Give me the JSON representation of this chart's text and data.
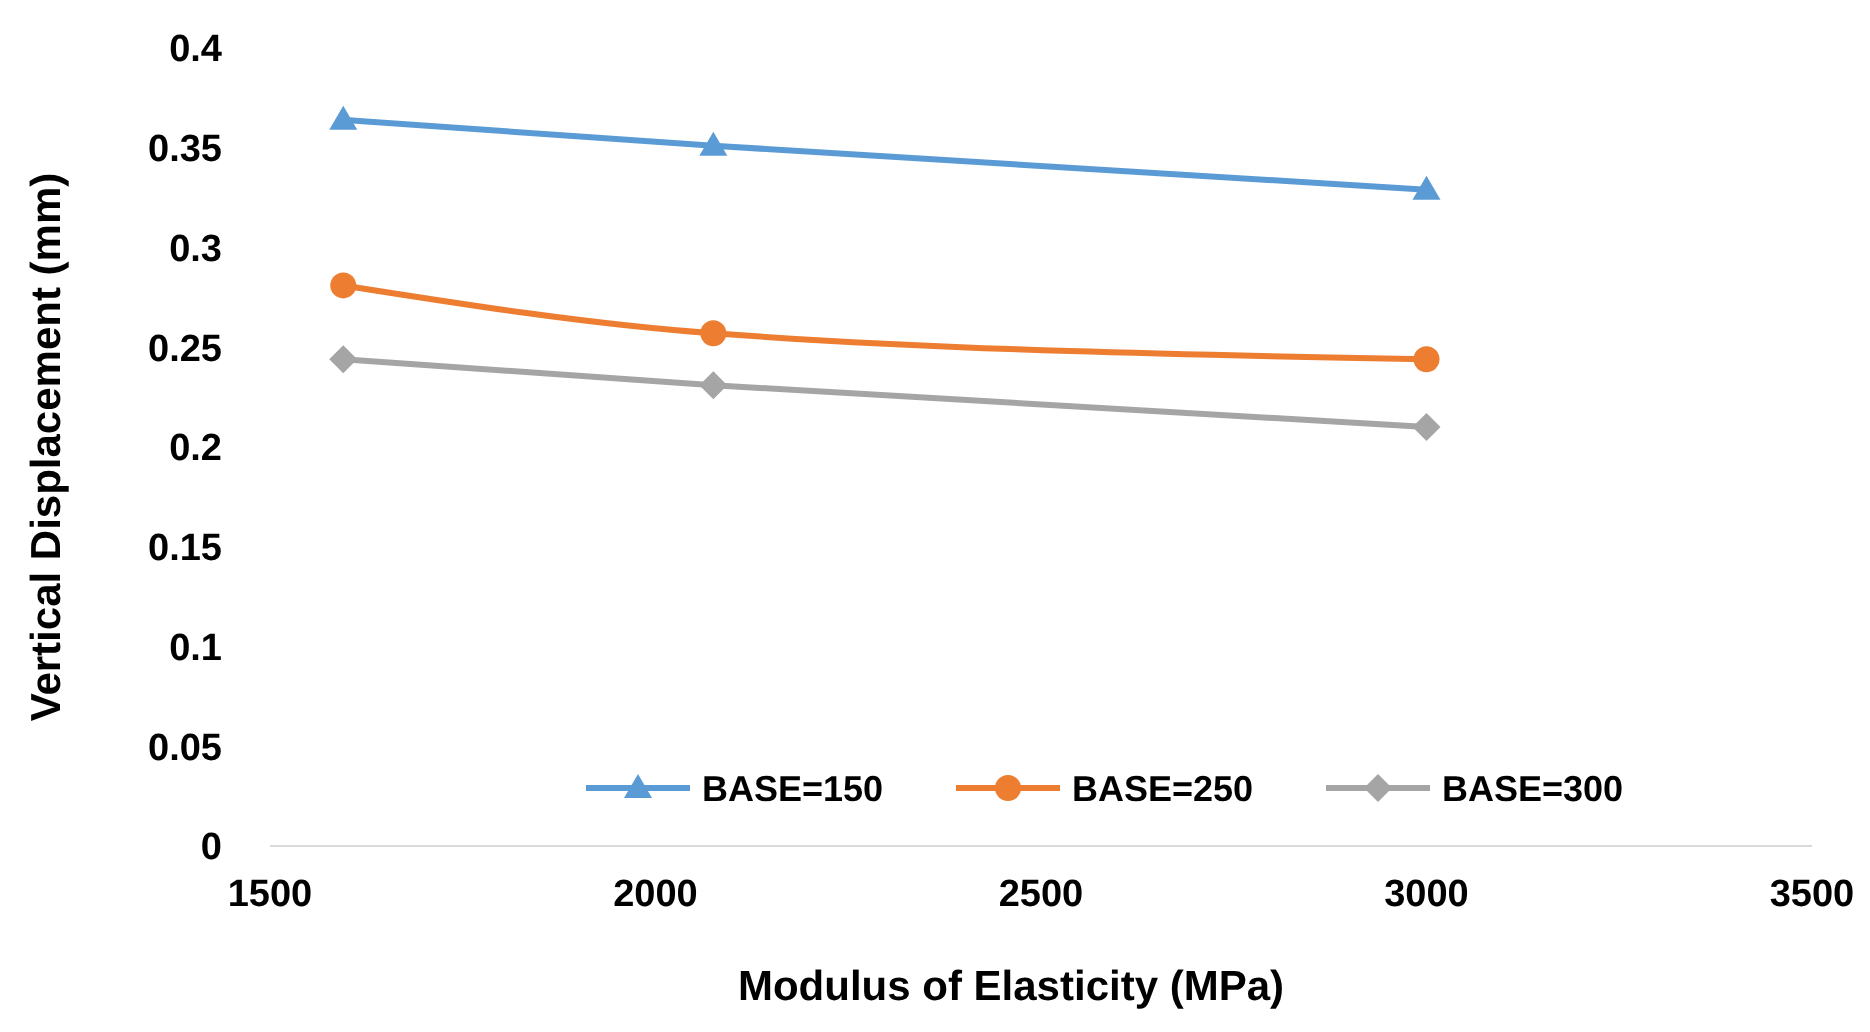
{
  "chart_data": {
    "type": "line",
    "xlabel": "Modulus of Elasticity (MPa)",
    "ylabel": "Vertical Displacement (mm)",
    "x": [
      1595,
      2075,
      3000
    ],
    "series": [
      {
        "name": "BASE=150",
        "color": "#5b9bd5",
        "marker": "triangle",
        "values": [
          0.364,
          0.351,
          0.329
        ]
      },
      {
        "name": "BASE=250",
        "color": "#ed7d31",
        "marker": "circle",
        "values": [
          0.281,
          0.257,
          0.244
        ]
      },
      {
        "name": "BASE=300",
        "color": "#a5a5a5",
        "marker": "diamond",
        "values": [
          0.244,
          0.231,
          0.21
        ]
      }
    ],
    "xlim": [
      1500,
      3500
    ],
    "xticks": [
      1500,
      2000,
      2500,
      3000,
      3500
    ],
    "ylim": [
      0,
      0.4
    ],
    "yticks": [
      0,
      {
        "value": 0.05,
        "label": "0.05"
      },
      {
        "value": 0.1,
        "label": "0.1"
      },
      {
        "value": 0.15,
        "label": "0.15"
      },
      {
        "value": 0.2,
        "label": "0.2"
      },
      {
        "value": 0.25,
        "label": "0.25"
      },
      {
        "value": 0.3,
        "label": "0.3"
      },
      {
        "value": 0.35,
        "label": "0.35"
      },
      {
        "value": 0.4,
        "label": "0.4"
      }
    ],
    "grid": false,
    "legend": "bottom",
    "line_style": "solid"
  }
}
